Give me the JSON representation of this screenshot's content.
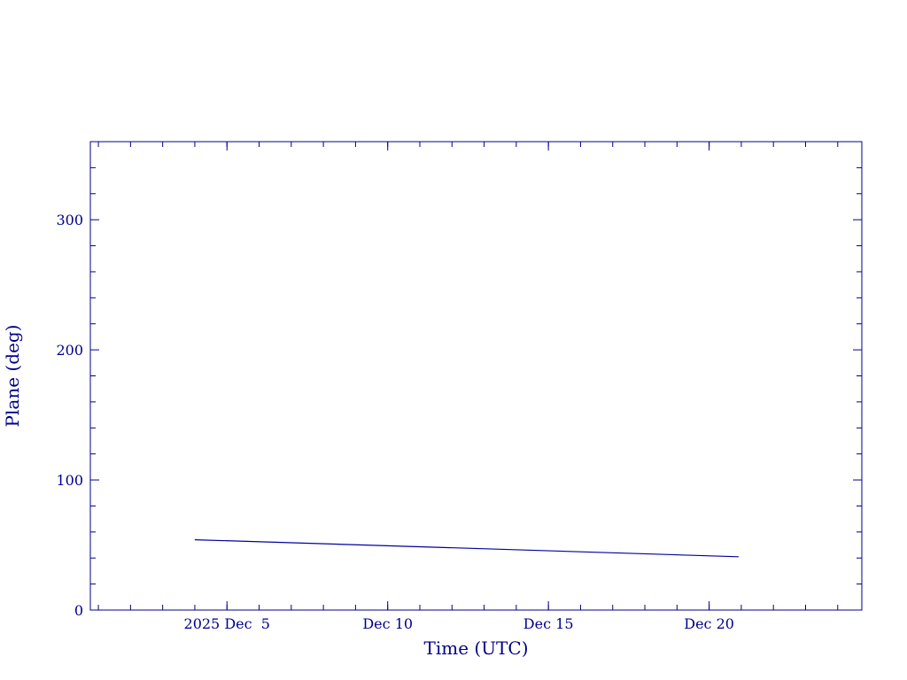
{
  "colors": {
    "frame": "#00008b",
    "line": "#0000a0",
    "text": "#00008b",
    "background": "#ffffff"
  },
  "chart_data": {
    "type": "line",
    "title": "",
    "xlabel": "Time (UTC)",
    "ylabel": "Plane (deg)",
    "grid": false,
    "legend": "none",
    "x_axis": {
      "kind": "date",
      "range": [
        "2025-11-30T18:00Z",
        "2025-12-24T18:00Z"
      ],
      "major_ticks": [
        {
          "date": "2025-12-05",
          "label": "2025 Dec  5"
        },
        {
          "date": "2025-12-10",
          "label": "Dec 10"
        },
        {
          "date": "2025-12-15",
          "label": "Dec 15"
        },
        {
          "date": "2025-12-20",
          "label": "Dec 20"
        }
      ],
      "minor_tick_step_days": 1
    },
    "y_axis": {
      "range": [
        0,
        360
      ],
      "major_ticks": [
        0,
        100,
        200,
        300
      ],
      "minor_tick_step": 20
    },
    "series": [
      {
        "x": [
          "2025-12-04T00:00Z",
          "2025-12-12T12:00Z",
          "2025-12-20T22:00Z"
        ],
        "y": [
          54,
          47.5,
          41
        ]
      }
    ]
  }
}
